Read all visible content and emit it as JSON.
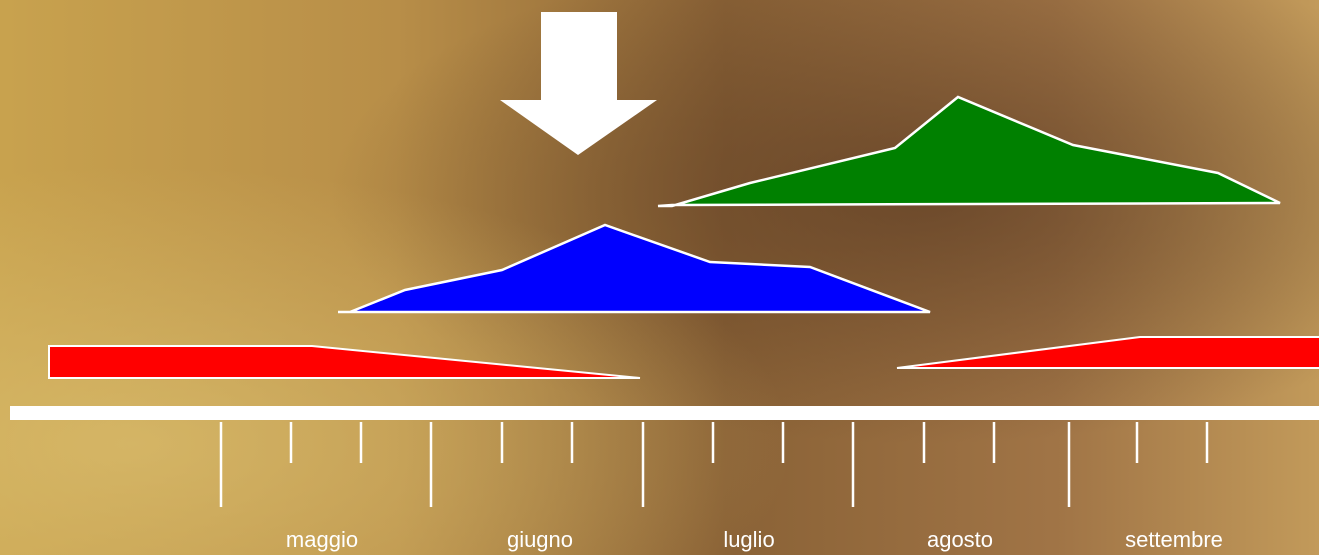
{
  "months": [
    "maggio",
    "giugno",
    "luglio",
    "agosto",
    "settembre"
  ]
}
